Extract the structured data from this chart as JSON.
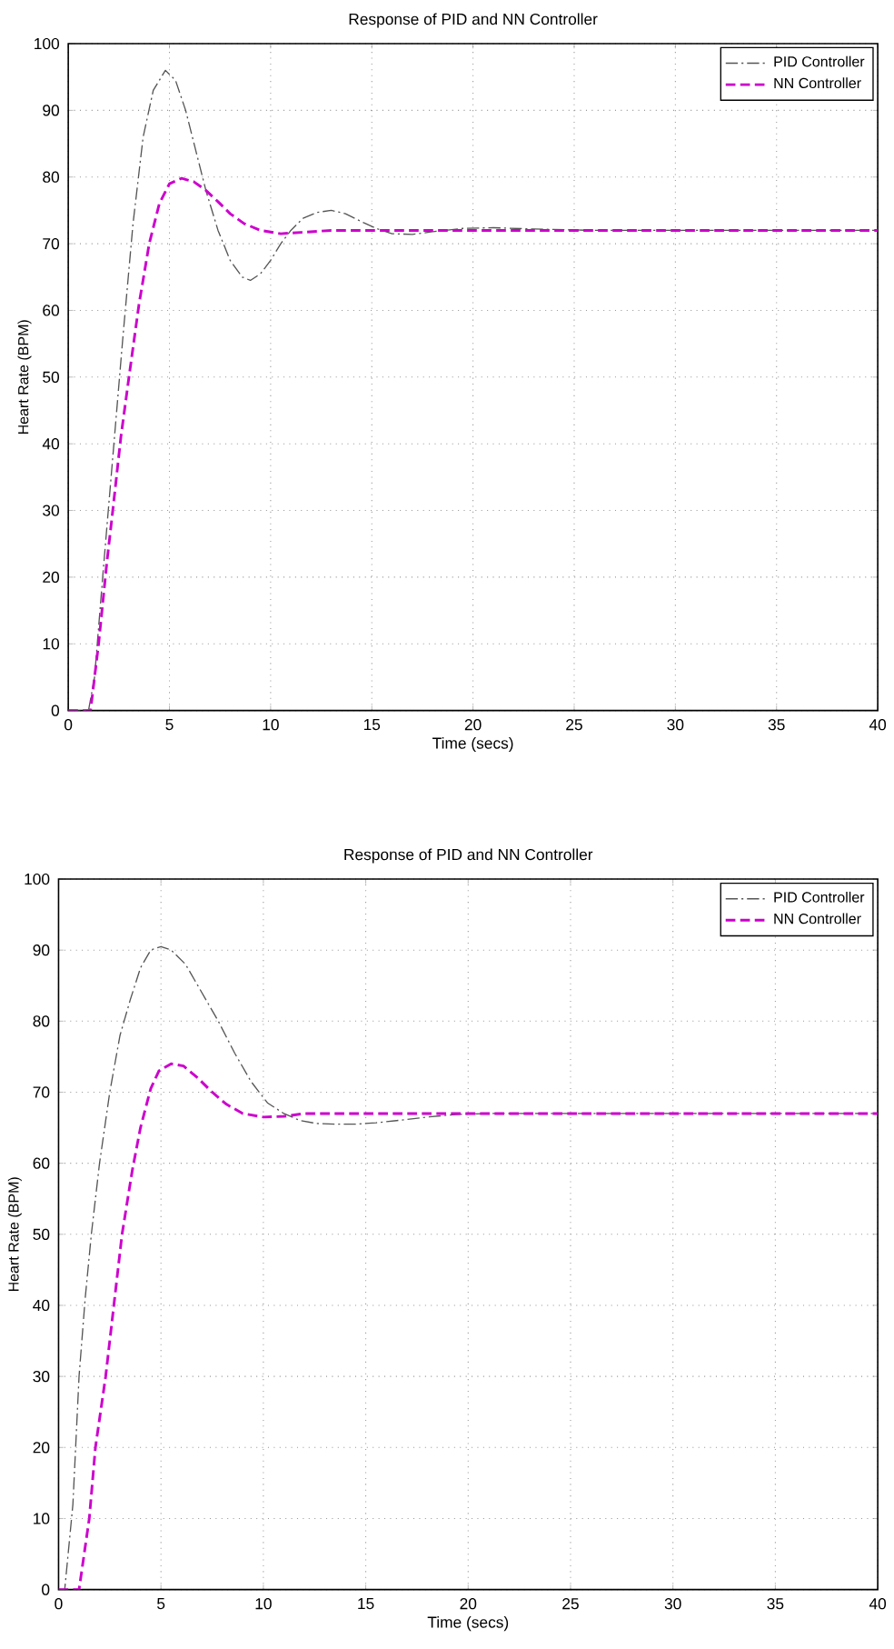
{
  "chart_data": [
    {
      "type": "line",
      "title": "Response of PID and NN Controller",
      "xlabel": "Time (secs)",
      "ylabel": "Heart Rate (BPM)",
      "xlim": [
        0,
        40
      ],
      "ylim": [
        0,
        100
      ],
      "xticks": [
        0,
        5,
        10,
        15,
        20,
        25,
        30,
        35,
        40
      ],
      "yticks": [
        0,
        10,
        20,
        30,
        40,
        50,
        60,
        70,
        80,
        90,
        100
      ],
      "grid": true,
      "legend": "top right",
      "series": [
        {
          "name": "PID Controller",
          "color": "#555555",
          "line_style": "dashdot",
          "x": [
            0,
            1,
            1.3,
            1.7,
            2.2,
            2.7,
            3.2,
            3.7,
            4.2,
            4.8,
            5.3,
            5.8,
            6.3,
            6.8,
            7.4,
            8.0,
            8.6,
            9.0,
            9.5,
            10.0,
            10.5,
            11.0,
            11.6,
            12.3,
            13.0,
            13.7,
            14.5,
            15.3,
            16.0,
            17.0,
            18.0,
            19.5,
            21.0,
            23.0,
            26.0,
            30.0,
            35.0,
            40.0
          ],
          "values": [
            0,
            0,
            5,
            20,
            38,
            56,
            73,
            86,
            93,
            96,
            94.5,
            90,
            84,
            78,
            72,
            67.5,
            65,
            64.5,
            65.5,
            67.5,
            70,
            72,
            73.8,
            74.7,
            75,
            74.5,
            73.3,
            72.2,
            71.5,
            71.4,
            71.8,
            72.3,
            72.4,
            72.2,
            72,
            72,
            72,
            72
          ]
        },
        {
          "name": "NN Controller",
          "color": "#cc00cc",
          "line_style": "dashed",
          "x": [
            0,
            1.1,
            1.5,
            1.9,
            2.2,
            2.6,
            3.0,
            3.5,
            4.0,
            4.5,
            5.0,
            5.6,
            6.2,
            6.8,
            7.4,
            8.0,
            8.7,
            9.5,
            10.5,
            11.5,
            13.0,
            15.0,
            18.0,
            22.0,
            30.0,
            40.0
          ],
          "values": [
            0,
            0,
            10,
            22,
            30,
            41,
            50,
            61,
            70,
            76,
            79,
            79.8,
            79.3,
            78,
            76.3,
            74.5,
            73,
            72,
            71.5,
            71.7,
            72,
            72,
            72,
            72,
            72,
            72
          ]
        }
      ]
    },
    {
      "type": "line",
      "title": "Response of PID and NN Controller",
      "xlabel": "Time (secs)",
      "ylabel": "Heart Rate (BPM)",
      "xlim": [
        0,
        40
      ],
      "ylim": [
        0,
        100
      ],
      "xticks": [
        0,
        5,
        10,
        15,
        20,
        25,
        30,
        35,
        40
      ],
      "yticks": [
        0,
        10,
        20,
        30,
        40,
        50,
        60,
        70,
        80,
        90,
        100
      ],
      "grid": true,
      "legend": "top right",
      "series": [
        {
          "name": "PID Controller",
          "color": "#555555",
          "line_style": "dashdot",
          "x": [
            0,
            0.3,
            0.7,
            1.0,
            1.3,
            1.6,
            2.0,
            2.5,
            3.0,
            3.5,
            4.0,
            4.5,
            5.0,
            5.5,
            6.2,
            7.0,
            7.8,
            8.6,
            9.4,
            10.2,
            11.0,
            11.8,
            12.6,
            13.5,
            14.5,
            15.5,
            16.5,
            18.0,
            19.5,
            21.0,
            24.0,
            30.0,
            40.0
          ],
          "values": [
            0,
            0,
            12,
            30,
            41,
            50,
            60,
            70,
            78,
            83,
            87.5,
            90,
            90.5,
            90,
            88,
            84,
            80,
            75.5,
            71.5,
            68.5,
            67,
            66,
            65.6,
            65.5,
            65.5,
            65.7,
            66,
            66.5,
            66.9,
            67,
            67,
            67,
            67
          ]
        },
        {
          "name": "NN Controller",
          "color": "#cc00cc",
          "line_style": "dashed",
          "x": [
            0,
            1.0,
            1.5,
            1.8,
            2.3,
            2.7,
            3.1,
            3.6,
            4.0,
            4.5,
            4.9,
            5.5,
            6.1,
            6.8,
            7.5,
            8.2,
            9.0,
            10.0,
            11.0,
            12.0,
            14.0,
            17.0,
            22.0,
            30.0,
            40.0
          ],
          "values": [
            0,
            0,
            10,
            20,
            30,
            40,
            50,
            59,
            65,
            70.5,
            73,
            74,
            73.7,
            72,
            70,
            68.3,
            67,
            66.5,
            66.6,
            67,
            67,
            67,
            67,
            67,
            67
          ]
        }
      ]
    }
  ]
}
